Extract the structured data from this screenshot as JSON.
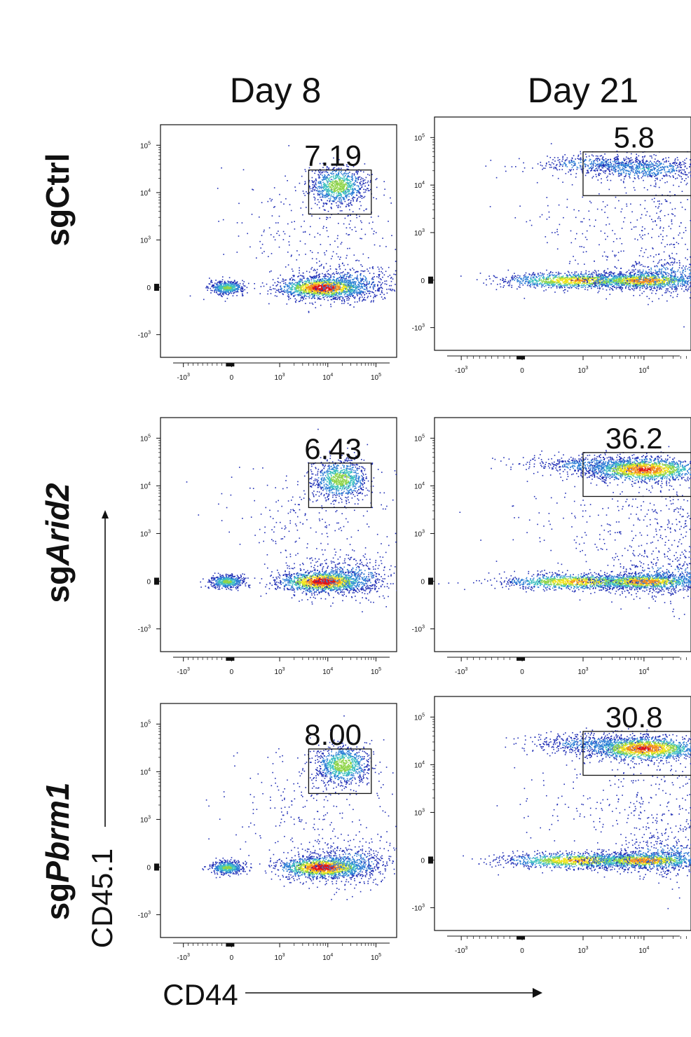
{
  "figure": {
    "columns": [
      "Day 8",
      "Day 21"
    ],
    "rows": [
      {
        "prefix": "sg",
        "name": "Ctrl",
        "italic": false
      },
      {
        "prefix": "sg",
        "name": "Arid2",
        "italic": true
      },
      {
        "prefix": "sg",
        "name": "Pbrm1",
        "italic": true
      }
    ],
    "xlabel": "CD44",
    "ylabel": "CD45.1"
  },
  "chart_data": {
    "type": "scatter",
    "subtype": "flow-cytometry-density",
    "x_axis": {
      "label": "CD44",
      "scale": "biexponential",
      "ticks": [
        {
          "base": "-10",
          "exp": "3"
        },
        {
          "base": "0",
          "exp": ""
        },
        {
          "base": "10",
          "exp": "3"
        },
        {
          "base": "10",
          "exp": "4"
        },
        {
          "base": "10",
          "exp": "5"
        }
      ]
    },
    "y_axis": {
      "label": "CD45.1",
      "scale": "biexponential",
      "ticks": [
        {
          "base": "-10",
          "exp": "3"
        },
        {
          "base": "0",
          "exp": ""
        },
        {
          "base": "10",
          "exp": "3"
        },
        {
          "base": "10",
          "exp": "4"
        },
        {
          "base": "10",
          "exp": "5"
        }
      ]
    },
    "color_scale": [
      "#1f2db5",
      "#2e7fd6",
      "#3fc1c0",
      "#8fd44a",
      "#f2e41c",
      "#f28c1c",
      "#e0151a"
    ],
    "panels": [
      {
        "row": "sgCtrl",
        "column": "Day 8",
        "gate_percent": "7.19",
        "gate_x": [
          4000,
          80000
        ],
        "gate_y": [
          3500,
          30000
        ]
      },
      {
        "row": "sgCtrl",
        "column": "Day 21",
        "gate_percent": "5.8",
        "gate_x": [
          1000,
          80000
        ],
        "gate_y": [
          6000,
          50000
        ]
      },
      {
        "row": "sgArid2",
        "column": "Day 8",
        "gate_percent": "6.43",
        "gate_x": [
          4000,
          80000
        ],
        "gate_y": [
          3500,
          30000
        ]
      },
      {
        "row": "sgArid2",
        "column": "Day 21",
        "gate_percent": "36.2",
        "gate_x": [
          1000,
          80000
        ],
        "gate_y": [
          6000,
          50000
        ]
      },
      {
        "row": "sgPbrm1",
        "column": "Day 8",
        "gate_percent": "8.00",
        "gate_x": [
          4000,
          80000
        ],
        "gate_y": [
          3500,
          30000
        ]
      },
      {
        "row": "sgPbrm1",
        "column": "Day 21",
        "gate_percent": "30.8",
        "gate_x": [
          1000,
          80000
        ],
        "gate_y": [
          6000,
          50000
        ]
      }
    ]
  }
}
